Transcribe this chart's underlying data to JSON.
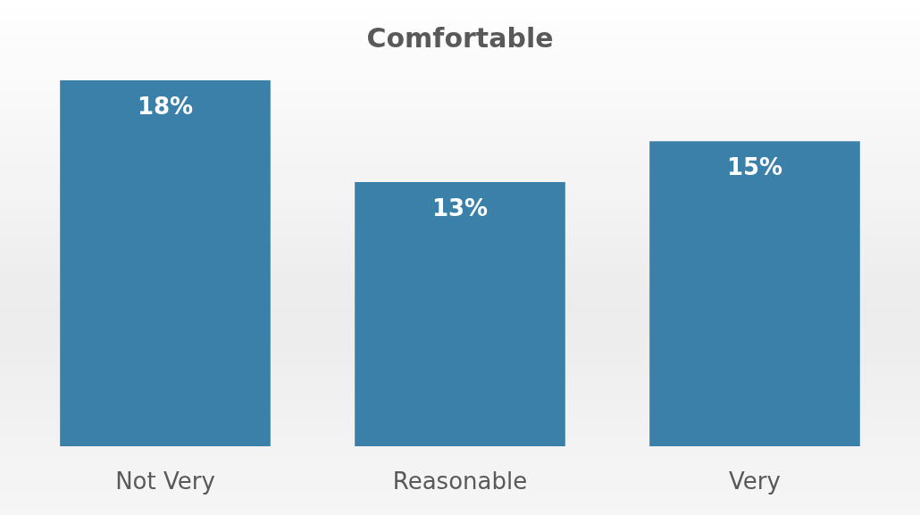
{
  "chart_data": {
    "type": "bar",
    "title": "Comfortable",
    "categories": [
      "Not Very",
      "Reasonable",
      "Very"
    ],
    "values": [
      18,
      13,
      15
    ],
    "value_labels": [
      "18%",
      "13%",
      "15%"
    ],
    "color": "#3a80a8"
  }
}
